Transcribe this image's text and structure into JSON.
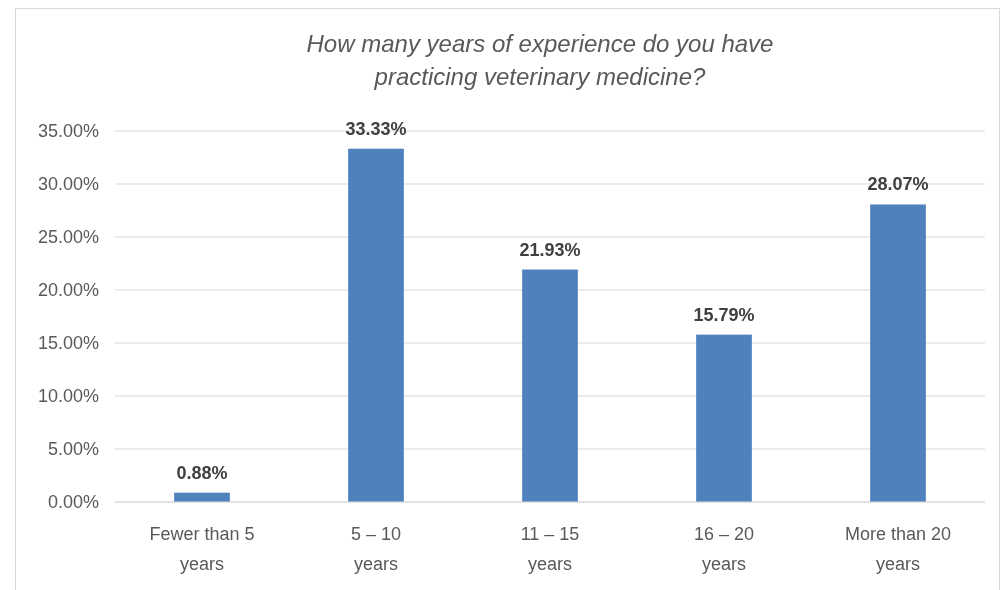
{
  "chart_data": {
    "type": "bar",
    "title": "How many years of experience do you have practicing veterinary medicine?",
    "categories": [
      "Fewer than 5 years",
      "5 – 10 years",
      "11 – 15 years",
      "16 – 20 years",
      "More than 20 years"
    ],
    "values": [
      0.88,
      33.33,
      21.93,
      15.79,
      28.07
    ],
    "value_labels": [
      "0.88%",
      "33.33%",
      "21.93%",
      "15.79%",
      "28.07%"
    ],
    "color": "#4f81bd",
    "ylim": [
      0,
      35
    ],
    "yticks": [
      {
        "value": 0,
        "label": "0.00%"
      },
      {
        "value": 5,
        "label": "5.00%"
      },
      {
        "value": 10,
        "label": "10.00%"
      },
      {
        "value": 15,
        "label": "15.00%"
      },
      {
        "value": 20,
        "label": "20.00%"
      },
      {
        "value": 25,
        "label": "25.00%"
      },
      {
        "value": 30,
        "label": "30.00%"
      },
      {
        "value": 35,
        "label": "35.00%"
      }
    ],
    "grid": "y"
  }
}
